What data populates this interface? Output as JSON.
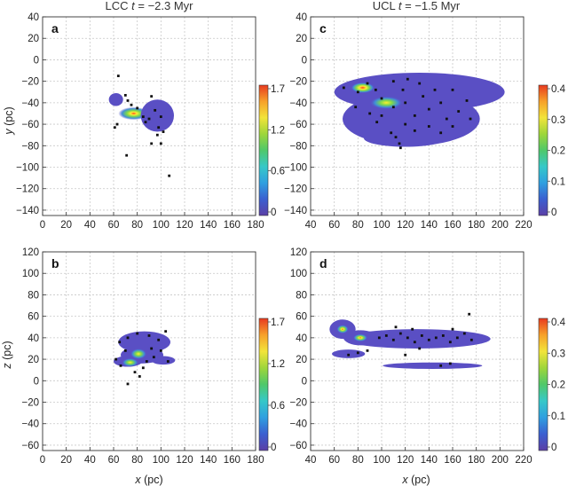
{
  "colors": {
    "blob_outer": "#5a4fc4",
    "blob_mid": "#3f8fd8",
    "blob_hot": "#7fd94a",
    "blob_core": "#ffee33",
    "blob_peak": "#ff3b1f",
    "star": "#111111",
    "grid": "#c8c8c8",
    "colorbar": [
      "#5b3fa6",
      "#3b5fd0",
      "#2f9fe0",
      "#36c8c8",
      "#4fc86a",
      "#9ed63a",
      "#f2e43a",
      "#f7a12a",
      "#e83a1f"
    ]
  },
  "chart_data": [
    {
      "id": "a",
      "type": "heatmap",
      "panel_label": "a",
      "title_prefix": "LCC ",
      "title_t": "t",
      "title_suffix": " = −2.3 Myr",
      "xlabel": "",
      "ylabel_var": "y",
      "ylabel_unit": " (pc)",
      "xlim": [
        0,
        180
      ],
      "ylim": [
        -145,
        40
      ],
      "xticks": [
        0,
        20,
        40,
        60,
        80,
        100,
        120,
        140,
        160,
        180
      ],
      "yticks": [
        40,
        20,
        0,
        -20,
        -40,
        -60,
        -80,
        -100,
        -120,
        -140
      ],
      "colorbar_ticks": [
        "1.7",
        "1.2",
        "0.6",
        "0"
      ],
      "blobs": [
        {
          "x": 62,
          "y": -37,
          "rx": 6,
          "ry": 6,
          "level": 1
        },
        {
          "x": 77,
          "y": -50,
          "rx": 13,
          "ry": 6,
          "level": 4
        },
        {
          "x": 97,
          "y": -52,
          "rx": 14,
          "ry": 15,
          "level": 1
        }
      ],
      "stars": [
        [
          64,
          -15
        ],
        [
          70,
          -33
        ],
        [
          72,
          -38
        ],
        [
          75,
          -42
        ],
        [
          92,
          -34
        ],
        [
          95,
          -47
        ],
        [
          100,
          -53
        ],
        [
          87,
          -58
        ],
        [
          98,
          -63
        ],
        [
          102,
          -67
        ],
        [
          97,
          -70
        ],
        [
          61,
          -63
        ],
        [
          63,
          -60
        ],
        [
          71,
          -89
        ],
        [
          107,
          -108
        ],
        [
          80,
          -45
        ],
        [
          85,
          -53
        ],
        [
          90,
          -55
        ],
        [
          92,
          -78
        ],
        [
          100,
          -78
        ]
      ]
    },
    {
      "id": "c",
      "type": "heatmap",
      "panel_label": "c",
      "title_prefix": "UCL ",
      "title_t": "t",
      "title_suffix": " = −1.5 Myr",
      "xlabel": "",
      "ylabel_var": "",
      "ylabel_unit": "",
      "xlim": [
        40,
        220
      ],
      "ylim": [
        -145,
        40
      ],
      "xticks": [
        40,
        60,
        80,
        100,
        120,
        140,
        160,
        180,
        200,
        220
      ],
      "yticks": [
        40,
        20,
        0,
        -20,
        -40,
        -60,
        -80,
        -100,
        -120,
        -140
      ],
      "colorbar_ticks": [
        "0.4",
        "0.3",
        "0.2",
        "0.1",
        "0"
      ],
      "blobs": [
        {
          "x": 132,
          "y": -30,
          "rx": 72,
          "ry": 18,
          "level": 1
        },
        {
          "x": 125,
          "y": -55,
          "rx": 58,
          "ry": 25,
          "level": 1
        },
        {
          "x": 120,
          "y": -73,
          "rx": 35,
          "ry": 8,
          "level": 1
        },
        {
          "x": 84,
          "y": -26,
          "rx": 10,
          "ry": 5,
          "level": 5
        },
        {
          "x": 104,
          "y": -40,
          "rx": 14,
          "ry": 6,
          "level": 3
        }
      ],
      "stars": [
        [
          68,
          -26
        ],
        [
          80,
          -30
        ],
        [
          88,
          -22
        ],
        [
          95,
          -28
        ],
        [
          100,
          -36
        ],
        [
          110,
          -44
        ],
        [
          118,
          -28
        ],
        [
          120,
          -40
        ],
        [
          128,
          -52
        ],
        [
          135,
          -34
        ],
        [
          140,
          -46
        ],
        [
          150,
          -40
        ],
        [
          160,
          -28
        ],
        [
          165,
          -48
        ],
        [
          172,
          -38
        ],
        [
          110,
          -20
        ],
        [
          122,
          -18
        ],
        [
          132,
          -22
        ],
        [
          145,
          -28
        ],
        [
          155,
          -55
        ],
        [
          160,
          -62
        ],
        [
          120,
          -60
        ],
        [
          108,
          -68
        ],
        [
          112,
          -72
        ],
        [
          128,
          -66
        ],
        [
          140,
          -62
        ],
        [
          150,
          -68
        ],
        [
          78,
          -44
        ],
        [
          90,
          -50
        ],
        [
          100,
          -52
        ],
        [
          96,
          -58
        ],
        [
          115,
          -78
        ],
        [
          116,
          -82
        ],
        [
          175,
          -55
        ]
      ]
    },
    {
      "id": "b",
      "type": "heatmap",
      "panel_label": "b",
      "title_prefix": "",
      "title_t": "",
      "title_suffix": "",
      "xlabel_var": "x",
      "xlabel_unit": " (pc)",
      "ylabel_var": "z",
      "ylabel_unit": " (pc)",
      "xlim": [
        0,
        180
      ],
      "ylim": [
        -65,
        120
      ],
      "xticks": [
        0,
        20,
        40,
        60,
        80,
        100,
        120,
        140,
        160,
        180
      ],
      "yticks": [
        120,
        100,
        80,
        60,
        40,
        20,
        0,
        -20,
        -40,
        -60
      ],
      "colorbar_ticks": [
        "1.7",
        "1.2",
        "0.6",
        "0"
      ],
      "blobs": [
        {
          "x": 86,
          "y": 36,
          "rx": 22,
          "ry": 10,
          "level": 1
        },
        {
          "x": 84,
          "y": 24,
          "rx": 18,
          "ry": 8,
          "level": 1
        },
        {
          "x": 72,
          "y": 18,
          "rx": 12,
          "ry": 5,
          "level": 1
        },
        {
          "x": 102,
          "y": 19,
          "rx": 10,
          "ry": 4,
          "level": 1
        },
        {
          "x": 81,
          "y": 25,
          "rx": 7,
          "ry": 5,
          "level": 3
        },
        {
          "x": 74,
          "y": 17,
          "rx": 7,
          "ry": 4,
          "level": 3
        }
      ],
      "stars": [
        [
          65,
          36
        ],
        [
          72,
          40
        ],
        [
          80,
          44
        ],
        [
          90,
          42
        ],
        [
          98,
          38
        ],
        [
          104,
          46
        ],
        [
          92,
          30
        ],
        [
          100,
          28
        ],
        [
          106,
          18
        ],
        [
          88,
          18
        ],
        [
          70,
          28
        ],
        [
          62,
          20
        ],
        [
          66,
          14
        ],
        [
          78,
          8
        ],
        [
          85,
          12
        ],
        [
          94,
          22
        ],
        [
          72,
          -3
        ],
        [
          82,
          4
        ]
      ]
    },
    {
      "id": "d",
      "type": "heatmap",
      "panel_label": "d",
      "title_prefix": "",
      "title_t": "",
      "title_suffix": "",
      "xlabel_var": "x",
      "xlabel_unit": " (pc)",
      "ylabel_var": "",
      "ylabel_unit": "",
      "xlim": [
        40,
        220
      ],
      "ylim": [
        -65,
        120
      ],
      "xticks": [
        40,
        60,
        80,
        100,
        120,
        140,
        160,
        180,
        200,
        220
      ],
      "yticks": [
        120,
        100,
        80,
        60,
        40,
        20,
        0,
        -20,
        -40,
        -60
      ],
      "colorbar_ticks": [
        "0.4",
        "0.3",
        "0.2",
        "0.1",
        "0"
      ],
      "blobs": [
        {
          "x": 130,
          "y": 39,
          "rx": 62,
          "ry": 9,
          "level": 1
        },
        {
          "x": 67,
          "y": 48,
          "rx": 11,
          "ry": 9,
          "level": 1
        },
        {
          "x": 82,
          "y": 40,
          "rx": 14,
          "ry": 7,
          "level": 1
        },
        {
          "x": 72,
          "y": 25,
          "rx": 14,
          "ry": 4,
          "level": 1
        },
        {
          "x": 143,
          "y": 14,
          "rx": 42,
          "ry": 3,
          "level": 1
        },
        {
          "x": 67,
          "y": 48,
          "rx": 5,
          "ry": 4,
          "level": 4
        },
        {
          "x": 82,
          "y": 40,
          "rx": 6,
          "ry": 3.5,
          "level": 4
        }
      ],
      "stars": [
        [
          98,
          40
        ],
        [
          104,
          42
        ],
        [
          110,
          38
        ],
        [
          116,
          44
        ],
        [
          122,
          40
        ],
        [
          128,
          36
        ],
        [
          134,
          42
        ],
        [
          140,
          38
        ],
        [
          146,
          40
        ],
        [
          152,
          42
        ],
        [
          158,
          36
        ],
        [
          164,
          40
        ],
        [
          170,
          44
        ],
        [
          176,
          38
        ],
        [
          112,
          50
        ],
        [
          126,
          48
        ],
        [
          160,
          48
        ],
        [
          174,
          62
        ],
        [
          120,
          24
        ],
        [
          132,
          30
        ],
        [
          150,
          14
        ],
        [
          158,
          16
        ],
        [
          72,
          24
        ],
        [
          80,
          26
        ],
        [
          88,
          28
        ]
      ]
    }
  ]
}
